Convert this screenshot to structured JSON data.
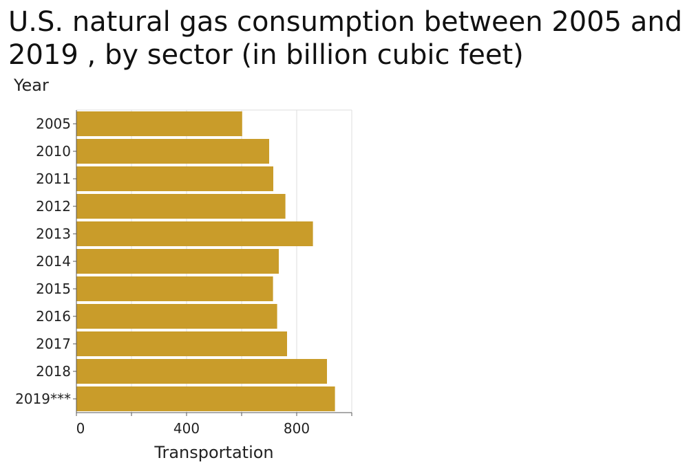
{
  "chart_data": {
    "type": "bar",
    "orientation": "horizontal",
    "title": "U.S. natural gas consumption between 2005 and 2019 , by sector (in billion cubic feet)",
    "xlabel": "Transportation",
    "ylabel": "Year",
    "categories": [
      "2005",
      "2010",
      "2011",
      "2012",
      "2013",
      "2014",
      "2015",
      "2016",
      "2017",
      "2018",
      "2019***"
    ],
    "series": [
      {
        "values": [
          602,
          700,
          715,
          759,
          859,
          735,
          714,
          729,
          765,
          910,
          939
        ]
      }
    ],
    "xlim": [
      0,
      1000
    ],
    "x_ticks": [
      0,
      400,
      800
    ],
    "grid": true,
    "legend": "none",
    "bar_color": "#c99c2a",
    "grid_color": "#dddddd",
    "axis_color": "#555555"
  }
}
